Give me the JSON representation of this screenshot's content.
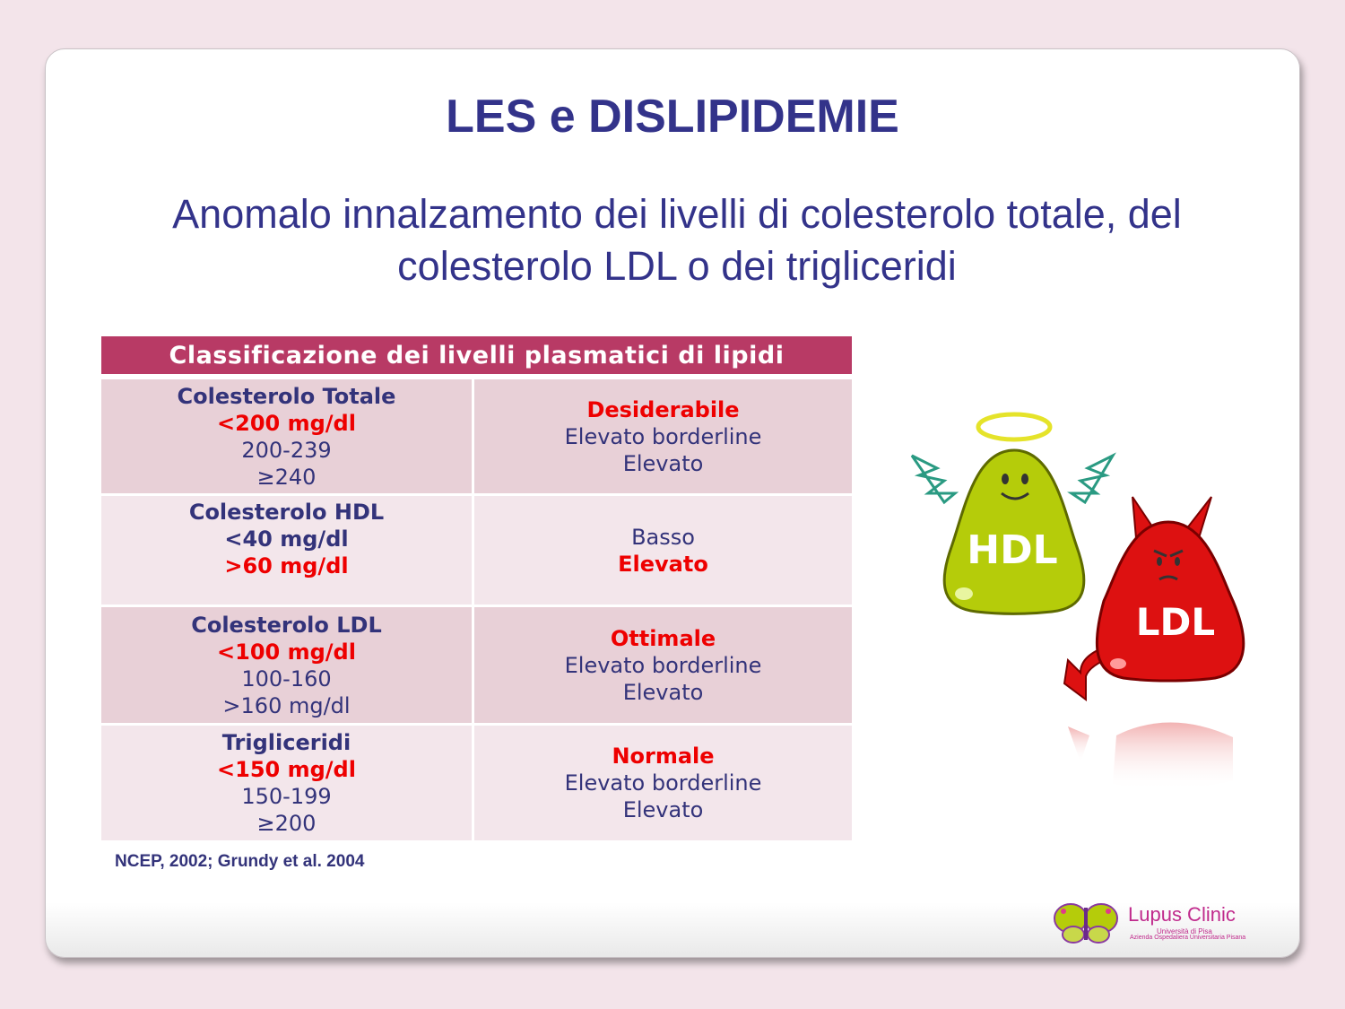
{
  "slide": {
    "title": "LES e DISLIPIDEMIE",
    "subtitle": "Anomalo innalzamento dei livelli di colesterolo totale, del colesterolo LDL o dei trigliceridi"
  },
  "table": {
    "header": "Classificazione dei livelli plasmatici di lipidi",
    "rows": [
      {
        "left": [
          {
            "text": "Colesterolo Totale",
            "style": "bold"
          },
          {
            "text": "<200 mg/dl",
            "style": "red"
          },
          {
            "text": "200-239",
            "style": "normal"
          },
          {
            "text": "≥240",
            "style": "normal"
          }
        ],
        "right": [
          {
            "text": "Desiderabile",
            "style": "red"
          },
          {
            "text": "Elevato borderline",
            "style": "normal"
          },
          {
            "text": "Elevato",
            "style": "normal"
          }
        ]
      },
      {
        "left": [
          {
            "text": "Colesterolo HDL",
            "style": "bold"
          },
          {
            "text": "<40 mg/dl",
            "style": "bold"
          },
          {
            "text": ">60 mg/dl",
            "style": "red"
          }
        ],
        "right": [
          {
            "text": "Basso",
            "style": "normal"
          },
          {
            "text": "Elevato",
            "style": "red"
          }
        ]
      },
      {
        "left": [
          {
            "text": "Colesterolo LDL",
            "style": "bold"
          },
          {
            "text": "<100 mg/dl",
            "style": "red"
          },
          {
            "text": "100-160",
            "style": "normal"
          },
          {
            "text": ">160 mg/dl",
            "style": "normal"
          }
        ],
        "right": [
          {
            "text": "Ottimale",
            "style": "red"
          },
          {
            "text": "Elevato borderline",
            "style": "normal"
          },
          {
            "text": "Elevato",
            "style": "normal"
          }
        ]
      },
      {
        "left": [
          {
            "text": "Trigliceridi",
            "style": "bold"
          },
          {
            "text": "<150 mg/dl",
            "style": "red"
          },
          {
            "text": "150-199",
            "style": "normal"
          },
          {
            "text": "≥200",
            "style": "normal"
          }
        ],
        "right": [
          {
            "text": "Normale",
            "style": "red"
          },
          {
            "text": "Elevato borderline",
            "style": "normal"
          },
          {
            "text": "Elevato",
            "style": "normal"
          }
        ]
      }
    ]
  },
  "citation": "NCEP, 2002; Grundy et al. 2004",
  "illustration": {
    "hdl_label": "HDL",
    "ldl_label": "LDL",
    "hdl_color": "#b5cc0a",
    "ldl_color": "#dd1111"
  },
  "logo": {
    "name": "Lupus Clinic",
    "line1": "Università di Pisa",
    "line2": "Azienda Ospedaliera Universitaria Pisana"
  }
}
